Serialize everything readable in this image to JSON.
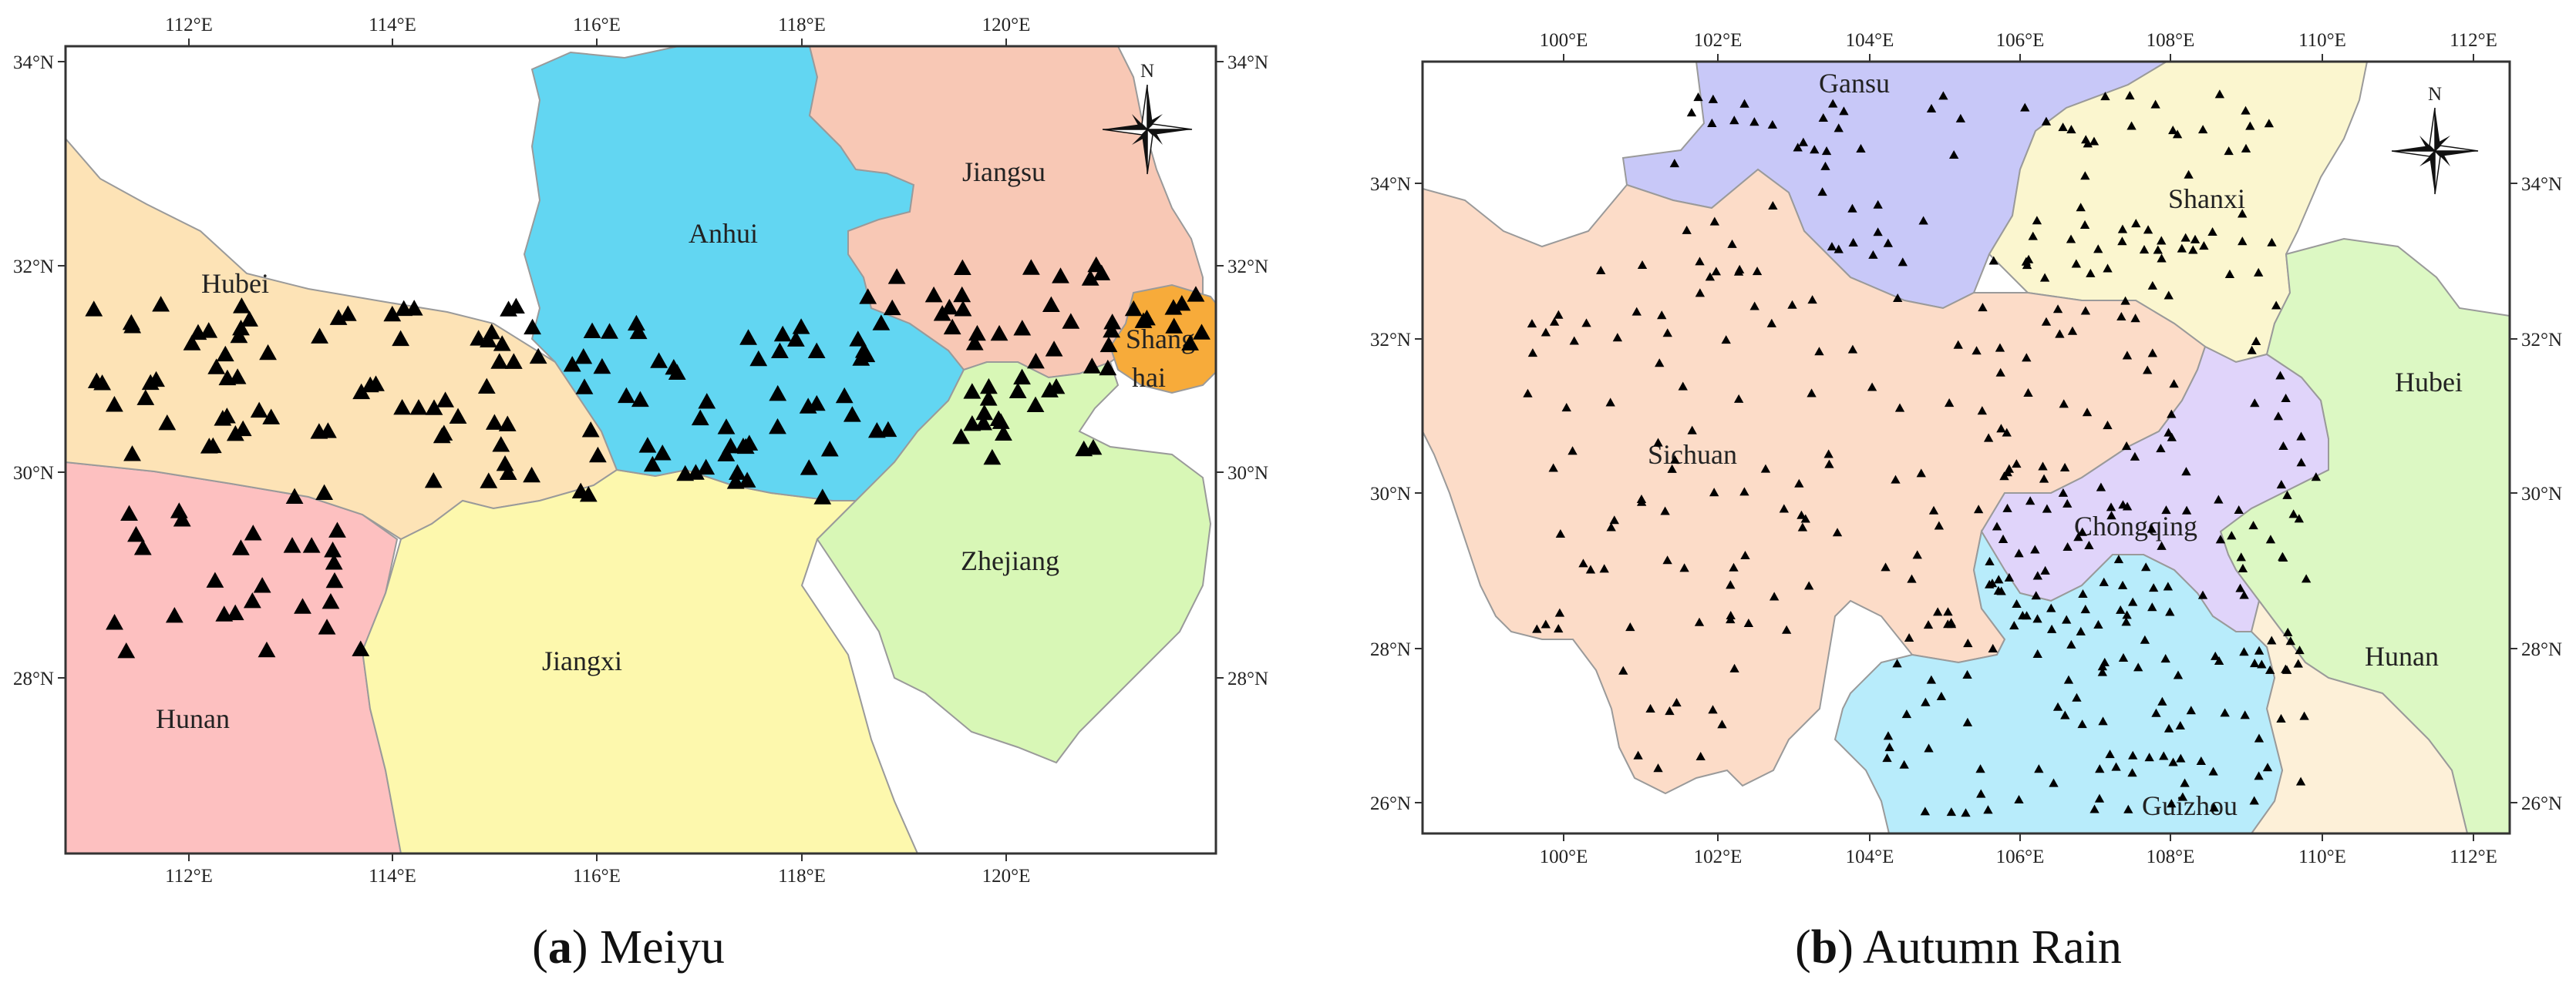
{
  "panels": [
    {
      "id": "a",
      "caption_letter": "a",
      "caption_text": "Meiyu",
      "top_ticks": [
        "112°E",
        "114°E",
        "116°E",
        "118°E",
        "120°E"
      ],
      "bottom_ticks": [
        "112°E",
        "114°E",
        "116°E",
        "118°E",
        "120°E"
      ],
      "left_ticks": [
        "34°N",
        "32°N",
        "30°N",
        "28°N"
      ],
      "right_ticks": [
        "34°N",
        "32°N",
        "30°N",
        "28°N"
      ],
      "provinces": [
        "Hubei",
        "Anhui",
        "Jiangsu",
        "Shang",
        "hai",
        "Zhejiang",
        "Jiangxi",
        "Hunan"
      ],
      "north_label": "N",
      "colors": {
        "hubei": "#fde3b6",
        "anhui": "#62d6f2",
        "jiangsu": "#f8c8b5",
        "shanghai": "#f7ab3a",
        "zhejiang": "#d8f7b6",
        "jiangxi": "#fdf8ad",
        "hunan": "#fdc0c0"
      }
    },
    {
      "id": "b",
      "caption_letter": "b",
      "caption_text": "Autumn Rain",
      "top_ticks": [
        "100°E",
        "102°E",
        "104°E",
        "106°E",
        "108°E",
        "110°E",
        "112°E"
      ],
      "bottom_ticks": [
        "100°E",
        "102°E",
        "104°E",
        "106°E",
        "108°E",
        "110°E",
        "112°E"
      ],
      "left_ticks": [
        "34°N",
        "32°N",
        "30°N",
        "28°N",
        "26°N"
      ],
      "right_ticks": [
        "34°N",
        "32°N",
        "30°N",
        "28°N",
        "26°N"
      ],
      "provinces": [
        "Gansu",
        "Shanxi",
        "Hubei",
        "Sichuan",
        "Chongqing",
        "Hunan",
        "Guizhou"
      ],
      "north_label": "N",
      "colors": {
        "gansu": "#c8c8f8",
        "shanxi": "#fbf6cf",
        "hubei": "#dcf8c3",
        "sichuan": "#fcdcc8",
        "chongqing": "#e0d4fa",
        "hunan": "#fdf0d8",
        "guizhou": "#b8ecfb"
      }
    }
  ]
}
